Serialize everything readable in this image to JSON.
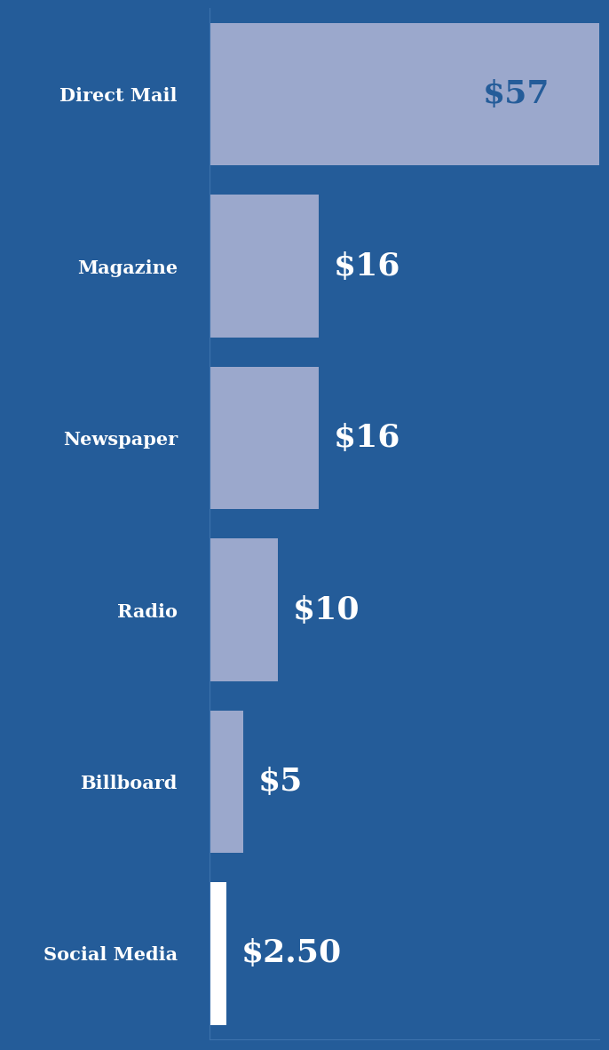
{
  "chart_data": {
    "type": "bar",
    "orientation": "horizontal",
    "categories": [
      "Direct Mail",
      "Magazine",
      "Newspaper",
      "Radio",
      "Billboard",
      "Social Media"
    ],
    "values": [
      57,
      16,
      16,
      10,
      5,
      2.5
    ],
    "value_labels": [
      "$57",
      "$16",
      "$16",
      "$10",
      "$5",
      "$2.50"
    ],
    "colors": [
      "#9ba8cc",
      "#9ba8cc",
      "#9ba8cc",
      "#9ba8cc",
      "#9ba8cc",
      "#ffffff"
    ],
    "xlim": [
      0,
      57
    ],
    "xticks": [],
    "data_labels": true,
    "tick_labels": "y",
    "grid": false
  }
}
